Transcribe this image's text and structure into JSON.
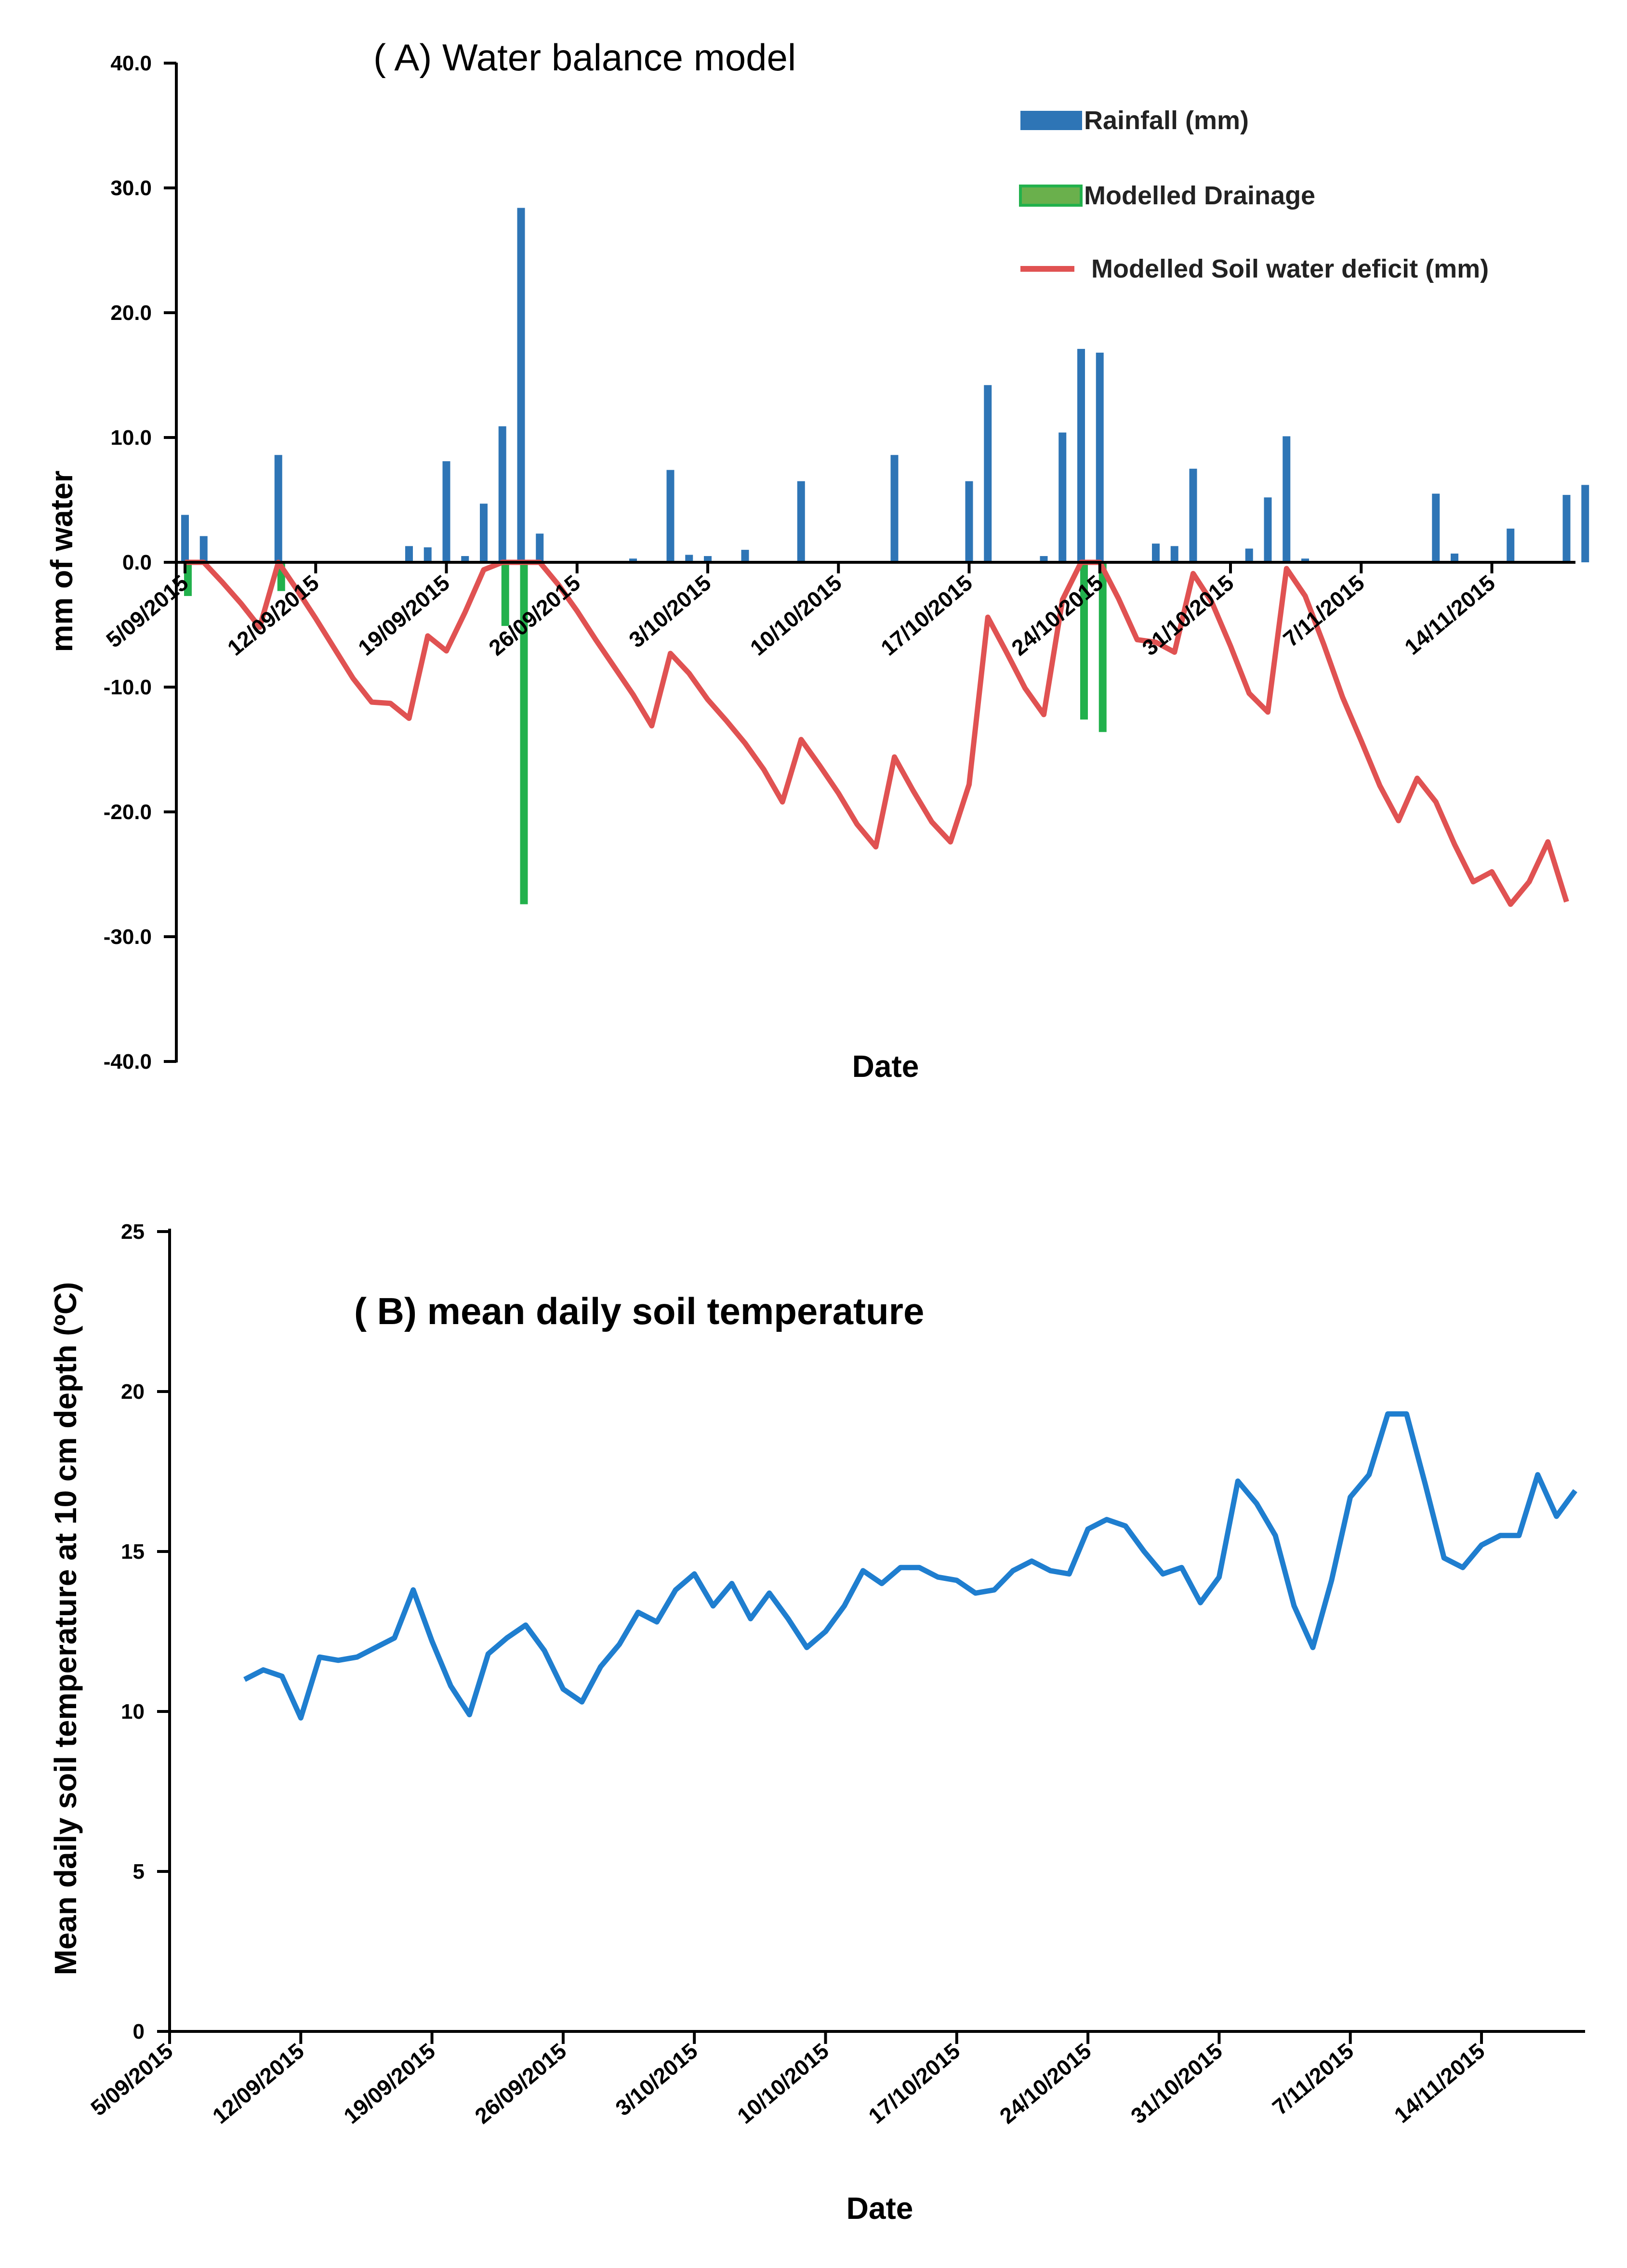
{
  "chart_data": [
    {
      "panel": "A",
      "type": "bar+line",
      "title": "( A)   Water balance model",
      "xlabel": "Date",
      "ylabel": "mm of water",
      "ylim": [
        -40,
        40
      ],
      "yticks": [
        "40.0",
        "30.0",
        "20.0",
        "10.0",
        "0.0",
        "-10.0",
        "-20.0",
        "-30.0",
        "-40.0"
      ],
      "xticks": [
        "5/09/2015",
        "12/09/2015",
        "19/09/2015",
        "26/09/2015",
        "3/10/2015",
        "10/10/2015",
        "17/10/2015",
        "24/10/2015",
        "31/10/2015",
        "7/11/2015",
        "14/11/2015"
      ],
      "x_start": "2015-09-05",
      "legend_position": "top-right",
      "colors": {
        "rainfall": "#2e75b6",
        "drainage": "#22b14c",
        "deficit": "#e05252"
      },
      "series": [
        {
          "name": "Rainfall (mm)",
          "kind": "bar",
          "points": [
            [
              "2015-09-05",
              3.8
            ],
            [
              "2015-09-06",
              2.1
            ],
            [
              "2015-09-10",
              8.6
            ],
            [
              "2015-09-17",
              1.3
            ],
            [
              "2015-09-18",
              1.2
            ],
            [
              "2015-09-19",
              8.1
            ],
            [
              "2015-09-20",
              0.5
            ],
            [
              "2015-09-21",
              4.7
            ],
            [
              "2015-09-22",
              10.9
            ],
            [
              "2015-09-23",
              28.4
            ],
            [
              "2015-09-24",
              2.3
            ],
            [
              "2015-09-29",
              0.3
            ],
            [
              "2015-10-01",
              7.4
            ],
            [
              "2015-10-02",
              0.6
            ],
            [
              "2015-10-03",
              0.5
            ],
            [
              "2015-10-05",
              1.0
            ],
            [
              "2015-10-08",
              6.5
            ],
            [
              "2015-10-13",
              8.6
            ],
            [
              "2015-10-17",
              6.5
            ],
            [
              "2015-10-18",
              14.2
            ],
            [
              "2015-10-21",
              0.5
            ],
            [
              "2015-10-22",
              10.4
            ],
            [
              "2015-10-23",
              17.1
            ],
            [
              "2015-10-24",
              16.8
            ],
            [
              "2015-10-27",
              1.5
            ],
            [
              "2015-10-28",
              1.3
            ],
            [
              "2015-10-29",
              7.5
            ],
            [
              "2015-11-01",
              1.1
            ],
            [
              "2015-11-02",
              5.2
            ],
            [
              "2015-11-03",
              10.1
            ],
            [
              "2015-11-04",
              0.3
            ],
            [
              "2015-11-11",
              5.5
            ],
            [
              "2015-11-12",
              0.7
            ],
            [
              "2015-11-15",
              2.7
            ],
            [
              "2015-11-18",
              5.4
            ],
            [
              "2015-11-19",
              6.2
            ]
          ]
        },
        {
          "name": "Modelled Drainage",
          "kind": "bar",
          "points": [
            [
              "2015-09-05",
              -2.7
            ],
            [
              "2015-09-10",
              -2.3
            ],
            [
              "2015-09-22",
              -5.1
            ],
            [
              "2015-09-23",
              -27.4
            ],
            [
              "2015-10-23",
              -12.6
            ],
            [
              "2015-10-24",
              -13.6
            ]
          ]
        },
        {
          "name": "Modelled Soil water deficit (mm)",
          "kind": "line",
          "points": [
            [
              "2015-09-05",
              0
            ],
            [
              "2015-09-06",
              0
            ],
            [
              "2015-09-07",
              -1.6
            ],
            [
              "2015-09-08",
              -3.3
            ],
            [
              "2015-09-09",
              -5.2
            ],
            [
              "2015-09-10",
              0
            ],
            [
              "2015-09-11",
              -2.2
            ],
            [
              "2015-09-12",
              -4.5
            ],
            [
              "2015-09-13",
              -6.9
            ],
            [
              "2015-09-14",
              -9.3
            ],
            [
              "2015-09-15",
              -11.2
            ],
            [
              "2015-09-16",
              -11.3
            ],
            [
              "2015-09-17",
              -12.5
            ],
            [
              "2015-09-18",
              -5.9
            ],
            [
              "2015-09-19",
              -7.1
            ],
            [
              "2015-09-20",
              -4.0
            ],
            [
              "2015-09-21",
              -0.6
            ],
            [
              "2015-09-22",
              0
            ],
            [
              "2015-09-23",
              0
            ],
            [
              "2015-09-24",
              0
            ],
            [
              "2015-09-25",
              -1.8
            ],
            [
              "2015-09-26",
              -3.9
            ],
            [
              "2015-09-27",
              -6.2
            ],
            [
              "2015-09-28",
              -8.4
            ],
            [
              "2015-09-29",
              -10.6
            ],
            [
              "2015-09-30",
              -13.1
            ],
            [
              "2015-10-01",
              -7.3
            ],
            [
              "2015-10-02",
              -8.9
            ],
            [
              "2015-10-03",
              -11.0
            ],
            [
              "2015-10-04",
              -12.7
            ],
            [
              "2015-10-05",
              -14.5
            ],
            [
              "2015-10-06",
              -16.6
            ],
            [
              "2015-10-07",
              -19.2
            ],
            [
              "2015-10-08",
              -14.2
            ],
            [
              "2015-10-09",
              -16.3
            ],
            [
              "2015-10-10",
              -18.5
            ],
            [
              "2015-10-11",
              -21.0
            ],
            [
              "2015-10-12",
              -22.8
            ],
            [
              "2015-10-13",
              -15.6
            ],
            [
              "2015-10-14",
              -18.3
            ],
            [
              "2015-10-15",
              -20.8
            ],
            [
              "2015-10-16",
              -22.4
            ],
            [
              "2015-10-17",
              -17.8
            ],
            [
              "2015-10-18",
              -4.4
            ],
            [
              "2015-10-19",
              -7.2
            ],
            [
              "2015-10-20",
              -10.1
            ],
            [
              "2015-10-21",
              -12.2
            ],
            [
              "2015-10-22",
              -3.0
            ],
            [
              "2015-10-23",
              0
            ],
            [
              "2015-10-24",
              0
            ],
            [
              "2015-10-25",
              -2.9
            ],
            [
              "2015-10-26",
              -6.2
            ],
            [
              "2015-10-27",
              -6.4
            ],
            [
              "2015-10-28",
              -7.2
            ],
            [
              "2015-10-29",
              -0.9
            ],
            [
              "2015-10-30",
              -3.2
            ],
            [
              "2015-10-31",
              -6.7
            ],
            [
              "2015-11-01",
              -10.5
            ],
            [
              "2015-11-02",
              -12.0
            ],
            [
              "2015-11-03",
              -0.5
            ],
            [
              "2015-11-04",
              -2.7
            ],
            [
              "2015-11-05",
              -6.6
            ],
            [
              "2015-11-06",
              -10.8
            ],
            [
              "2015-11-07",
              -14.3
            ],
            [
              "2015-11-08",
              -17.9
            ],
            [
              "2015-11-09",
              -20.7
            ],
            [
              "2015-11-10",
              -17.3
            ],
            [
              "2015-11-11",
              -19.2
            ],
            [
              "2015-11-12",
              -22.6
            ],
            [
              "2015-11-13",
              -25.6
            ],
            [
              "2015-11-14",
              -24.8
            ],
            [
              "2015-11-15",
              -27.4
            ],
            [
              "2015-11-16",
              -25.6
            ],
            [
              "2015-11-17",
              -22.4
            ],
            [
              "2015-11-18",
              -27.2
            ]
          ]
        }
      ]
    },
    {
      "panel": "B",
      "type": "line",
      "title": "( B)   mean daily soil temperature",
      "xlabel": "Date",
      "ylabel": "Mean daily soil temperature at 10 cm depth (ºC)",
      "ylim": [
        0,
        25
      ],
      "yticks": [
        "25",
        "20",
        "15",
        "10",
        "5",
        "0"
      ],
      "xticks": [
        "5/09/2015",
        "12/09/2015",
        "19/09/2015",
        "26/09/2015",
        "3/10/2015",
        "10/10/2015",
        "17/10/2015",
        "24/10/2015",
        "31/10/2015",
        "7/11/2015",
        "14/11/2015"
      ],
      "x_start": "2015-09-05",
      "colors": {
        "line": "#1f7ecf"
      },
      "series": [
        {
          "name": "",
          "points": [
            [
              "2015-09-09",
              11.0
            ],
            [
              "2015-09-10",
              11.3
            ],
            [
              "2015-09-11",
              11.1
            ],
            [
              "2015-09-12",
              9.8
            ],
            [
              "2015-09-13",
              11.7
            ],
            [
              "2015-09-14",
              11.6
            ],
            [
              "2015-09-15",
              11.7
            ],
            [
              "2015-09-16",
              12.0
            ],
            [
              "2015-09-17",
              12.3
            ],
            [
              "2015-09-18",
              13.8
            ],
            [
              "2015-09-19",
              12.2
            ],
            [
              "2015-09-20",
              10.8
            ],
            [
              "2015-09-21",
              9.9
            ],
            [
              "2015-09-22",
              11.8
            ],
            [
              "2015-09-23",
              12.3
            ],
            [
              "2015-09-24",
              12.7
            ],
            [
              "2015-09-25",
              11.9
            ],
            [
              "2015-09-26",
              10.7
            ],
            [
              "2015-09-27",
              10.3
            ],
            [
              "2015-09-28",
              11.4
            ],
            [
              "2015-09-29",
              12.1
            ],
            [
              "2015-09-30",
              13.1
            ],
            [
              "2015-10-01",
              12.8
            ],
            [
              "2015-10-02",
              13.8
            ],
            [
              "2015-10-03",
              14.3
            ],
            [
              "2015-10-04",
              13.3
            ],
            [
              "2015-10-05",
              14.0
            ],
            [
              "2015-10-06",
              12.9
            ],
            [
              "2015-10-07",
              13.7
            ],
            [
              "2015-10-08",
              12.9
            ],
            [
              "2015-10-09",
              12.0
            ],
            [
              "2015-10-10",
              12.5
            ],
            [
              "2015-10-11",
              13.3
            ],
            [
              "2015-10-12",
              14.4
            ],
            [
              "2015-10-13",
              14.0
            ],
            [
              "2015-10-14",
              14.5
            ],
            [
              "2015-10-15",
              14.5
            ],
            [
              "2015-10-16",
              14.2
            ],
            [
              "2015-10-17",
              14.1
            ],
            [
              "2015-10-18",
              13.7
            ],
            [
              "2015-10-19",
              13.8
            ],
            [
              "2015-10-20",
              14.4
            ],
            [
              "2015-10-21",
              14.7
            ],
            [
              "2015-10-22",
              14.4
            ],
            [
              "2015-10-23",
              14.3
            ],
            [
              "2015-10-24",
              15.7
            ],
            [
              "2015-10-25",
              16.0
            ],
            [
              "2015-10-26",
              15.8
            ],
            [
              "2015-10-27",
              15.0
            ],
            [
              "2015-10-28",
              14.3
            ],
            [
              "2015-10-29",
              14.5
            ],
            [
              "2015-10-30",
              13.4
            ],
            [
              "2015-10-31",
              14.2
            ],
            [
              "2015-11-01",
              17.2
            ],
            [
              "2015-11-02",
              16.5
            ],
            [
              "2015-11-03",
              15.5
            ],
            [
              "2015-11-04",
              13.3
            ],
            [
              "2015-11-05",
              12.0
            ],
            [
              "2015-11-06",
              14.1
            ],
            [
              "2015-11-07",
              16.7
            ],
            [
              "2015-11-08",
              17.4
            ],
            [
              "2015-11-09",
              19.3
            ],
            [
              "2015-11-10",
              19.3
            ],
            [
              "2015-11-11",
              17.1
            ],
            [
              "2015-11-12",
              14.8
            ],
            [
              "2015-11-13",
              14.5
            ],
            [
              "2015-11-14",
              15.2
            ],
            [
              "2015-11-15",
              15.5
            ],
            [
              "2015-11-16",
              15.5
            ],
            [
              "2015-11-17",
              17.4
            ],
            [
              "2015-11-18",
              16.1
            ],
            [
              "2015-11-19",
              16.9
            ]
          ]
        }
      ]
    }
  ]
}
